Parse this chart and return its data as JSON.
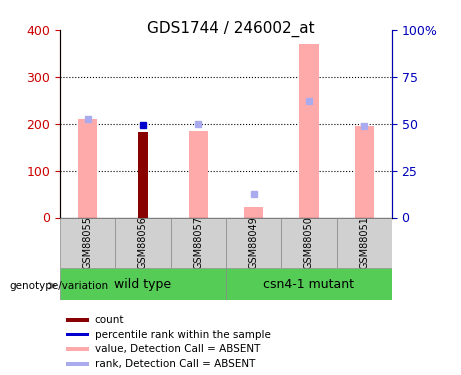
{
  "title": "GDS1744 / 246002_at",
  "samples": [
    "GSM88055",
    "GSM88056",
    "GSM88057",
    "GSM88049",
    "GSM88050",
    "GSM88051"
  ],
  "value_absent": [
    210,
    0,
    185,
    22,
    370,
    196
  ],
  "rank_absent": [
    210,
    0,
    200,
    50,
    248,
    196
  ],
  "count_bar": [
    0,
    182,
    0,
    0,
    0,
    0
  ],
  "percentile_rank": [
    0,
    197,
    0,
    0,
    0,
    0
  ],
  "ylim_left": [
    0,
    400
  ],
  "ylim_right": [
    0,
    100
  ],
  "yticks_left": [
    0,
    100,
    200,
    300,
    400
  ],
  "yticks_right": [
    0,
    25,
    50,
    75,
    100
  ],
  "yticklabels_right": [
    "0",
    "25",
    "50",
    "75",
    "100%"
  ],
  "color_value_absent": "#ffaaaa",
  "color_rank_absent": "#aaaaee",
  "color_count": "#880000",
  "color_percentile": "#0000cc",
  "bar_width": 0.35,
  "left_label_color": "#cc0000",
  "right_label_color": "#0000bb"
}
